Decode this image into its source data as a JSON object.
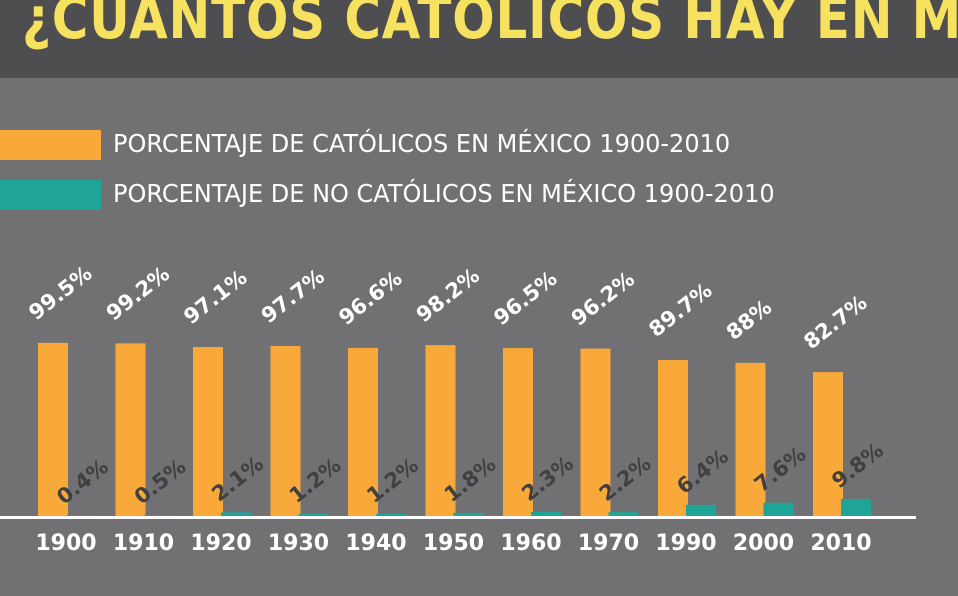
{
  "title": "¿CUANTOS CATÓLICOS HAY EN MEXICO?",
  "colors": {
    "catholic": "#f9a83a",
    "non_catholic": "#1ea597",
    "title": "#f7e25f",
    "value_label_catholic": "#ffffff",
    "value_label_non_catholic": "#404042",
    "axis": "#ffffff",
    "tick_label": "#ffffff"
  },
  "chart_data": {
    "type": "bar",
    "title": "¿CUANTOS CATÓLICOS HAY EN MEXICO?",
    "xlabel": "",
    "ylabel": "",
    "ylim": [
      0,
      100
    ],
    "grid": false,
    "legend_position": "top-left",
    "categories": [
      "1900",
      "1910",
      "1920",
      "1930",
      "1940",
      "1950",
      "1960",
      "1970",
      "1990",
      "2000",
      "2010"
    ],
    "series": [
      {
        "name": "PORCENTAJE DE CATÓLICOS EN MÉXICO 1900-2010",
        "values": [
          99.5,
          99.2,
          97.1,
          97.7,
          96.6,
          98.2,
          96.5,
          96.2,
          89.7,
          88,
          82.7
        ],
        "labels": [
          "99.5%",
          "99.2%",
          "97.1%",
          "97.7%",
          "96.6%",
          "98.2%",
          "96.5%",
          "96.2%",
          "89.7%",
          "88%",
          "82.7%"
        ]
      },
      {
        "name": "PORCENTAJE DE NO CATÓLICOS EN MÉXICO 1900-2010",
        "values": [
          0.4,
          0.5,
          2.1,
          1.2,
          1.2,
          1.8,
          2.3,
          2.2,
          6.4,
          7.6,
          9.8
        ],
        "labels": [
          "0.4%",
          "0.5%",
          "2.1%",
          "1.2%",
          "1.2%",
          "1.8%",
          "2.3%",
          "2.2%",
          "6.4%",
          "7.6%",
          "9.8%"
        ]
      }
    ]
  }
}
